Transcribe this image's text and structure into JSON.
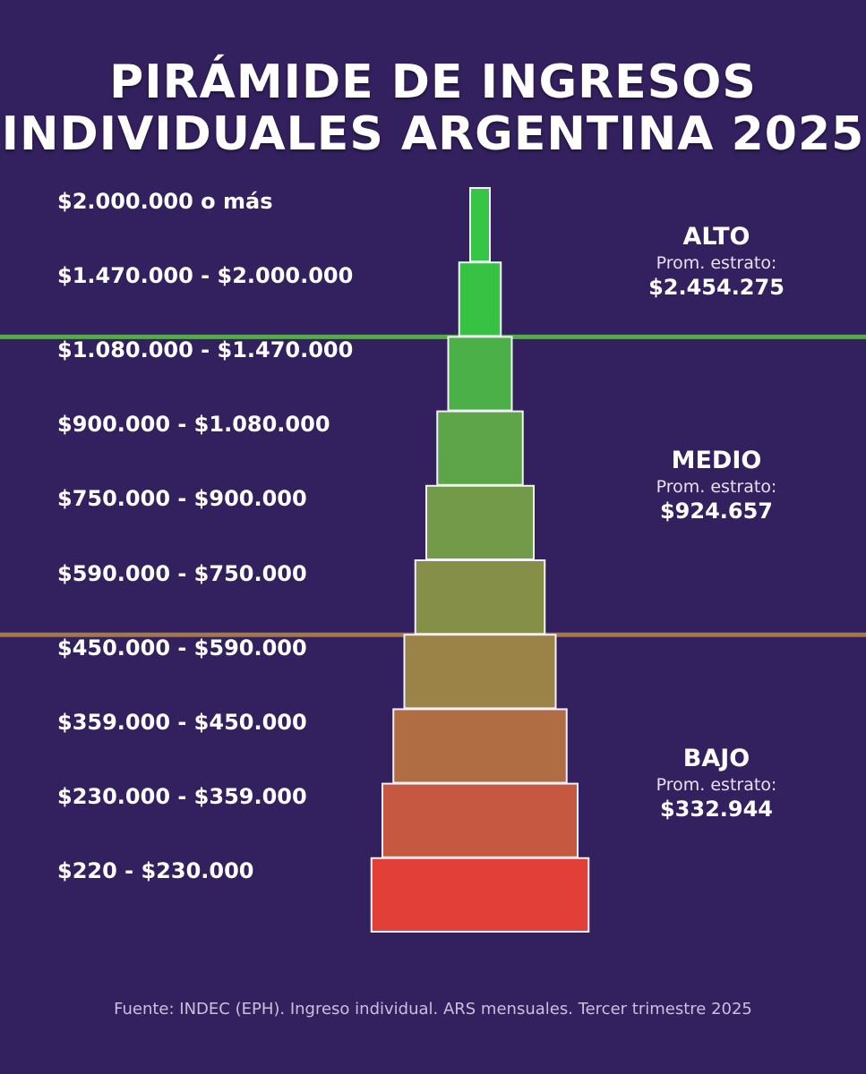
{
  "chart_data": {
    "type": "pyramid",
    "title_line1": "PIRÁMIDE DE INGRESOS",
    "title_line2": "INDIVIDUALES ARGENTINA 2025",
    "brackets": [
      {
        "label": "$2.000.000 o más",
        "stratum": "alto",
        "color": "#36c545"
      },
      {
        "label": "$1.470.000 - $2.000.000",
        "stratum": "alto",
        "color": "#38c244"
      },
      {
        "label": "$1.080.000 - $1.470.000",
        "stratum": "medio",
        "color": "#4cb049"
      },
      {
        "label": "$900.000 - $1.080.000",
        "stratum": "medio",
        "color": "#5ea448"
      },
      {
        "label": "$750.000 - $900.000",
        "stratum": "medio",
        "color": "#729a49"
      },
      {
        "label": "$590.000 - $750.000",
        "stratum": "medio",
        "color": "#868f48"
      },
      {
        "label": "$450.000 - $590.000",
        "stratum": "bajo",
        "color": "#9b8246"
      },
      {
        "label": "$359.000 - $450.000",
        "stratum": "bajo",
        "color": "#b06d44"
      },
      {
        "label": "$230.000 - $359.000",
        "stratum": "bajo",
        "color": "#c65740"
      },
      {
        "label": "$220 - $230.000",
        "stratum": "bajo",
        "color": "#e23f38"
      }
    ],
    "strata": [
      {
        "name": "ALTO",
        "subtitle": "Prom. estrato:",
        "average": "$2.454.275"
      },
      {
        "name": "MEDIO",
        "subtitle": "Prom. estrato:",
        "average": "$924.657"
      },
      {
        "name": "BAJO",
        "subtitle": "Prom. estrato:",
        "average": "$332.944"
      }
    ],
    "divider_colors": {
      "alto_medio": "#59a84f",
      "medio_bajo": "#a57845"
    },
    "source": "Fuente: INDEC (EPH). Ingreso individual. ARS mensuales. Tercer trimestre 2025"
  },
  "colors": {
    "background": "#33205e",
    "text": "#ffffff",
    "bar_border": "#f3f0f7"
  }
}
